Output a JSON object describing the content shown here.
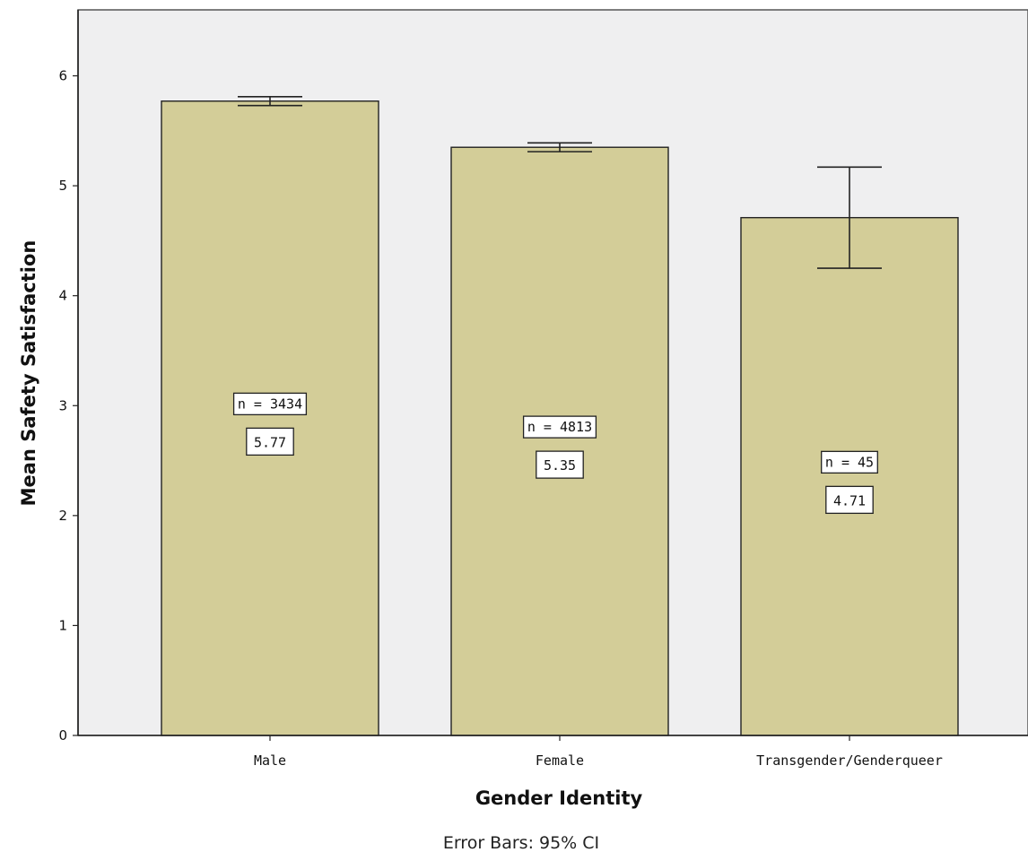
{
  "chart_data": {
    "type": "bar",
    "categories": [
      "Male",
      "Female",
      "Transgender/Genderqueer"
    ],
    "values": [
      5.77,
      5.35,
      4.71
    ],
    "value_labels": [
      "5.77",
      "5.35",
      "4.71"
    ],
    "n_labels": [
      "n = 3434",
      "n = 4813",
      "n = 45"
    ],
    "error_bars": [
      {
        "lower": 5.73,
        "upper": 5.81
      },
      {
        "lower": 5.31,
        "upper": 5.39
      },
      {
        "lower": 4.25,
        "upper": 5.17
      }
    ],
    "xlabel": "Gender Identity",
    "ylabel": "Mean Safety Satisfaction",
    "ylim": [
      0,
      6.6
    ],
    "yticks": [
      0,
      1,
      2,
      3,
      4,
      5,
      6
    ],
    "error_note": "Error Bars: 95% CI",
    "grid": false,
    "colors": {
      "bar": "#d3cd98",
      "plot_bg": "#efeff0"
    }
  }
}
